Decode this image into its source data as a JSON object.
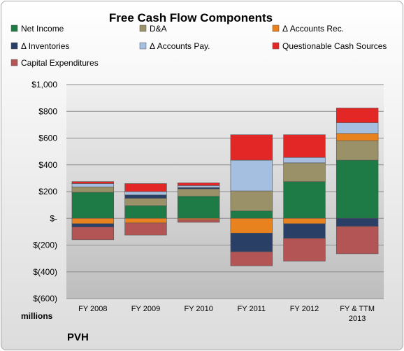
{
  "chart_data": {
    "type": "bar",
    "stacked": true,
    "title": "Free Cash Flow Components",
    "units_label": "millions",
    "company": "PVH",
    "categories": [
      "FY 2008",
      "FY 2009",
      "FY 2010",
      "FY 2011",
      "FY 2012",
      "FY & TTM 2013"
    ],
    "ylim": [
      -600,
      1000
    ],
    "yticks": [
      -600,
      -400,
      -200,
      0,
      200,
      400,
      600,
      800,
      1000
    ],
    "ytick_labels": [
      "$(600)",
      "$(400)",
      "$(200)",
      "$-",
      "$200",
      "$400",
      "$600",
      "$800",
      "$1,000"
    ],
    "grid": true,
    "legend_position": "top",
    "series": [
      {
        "name": "Net Income",
        "color": "#1e7b45",
        "values": [
          195,
          95,
          165,
          55,
          275,
          435
        ]
      },
      {
        "name": "D&A",
        "color": "#9b9169",
        "values": [
          40,
          55,
          55,
          150,
          140,
          145
        ]
      },
      {
        "name": "Δ Accounts Rec.",
        "color": "#e8821f",
        "values": [
          -40,
          -35,
          -10,
          -110,
          -40,
          55
        ]
      },
      {
        "name": "Δ Inventories",
        "color": "#2a3f66",
        "values": [
          -25,
          25,
          10,
          -140,
          -110,
          -60
        ]
      },
      {
        "name": "Δ Accounts Pay.",
        "color": "#a4bfe0",
        "values": [
          25,
          25,
          15,
          230,
          40,
          80
        ]
      },
      {
        "name": "Questionable Cash Sources",
        "color": "#e32626",
        "values": [
          15,
          60,
          20,
          190,
          170,
          110
        ]
      },
      {
        "name": "Capital Expenditures",
        "color": "#b35555",
        "values": [
          -95,
          -90,
          -20,
          -105,
          -170,
          -205
        ]
      }
    ]
  }
}
